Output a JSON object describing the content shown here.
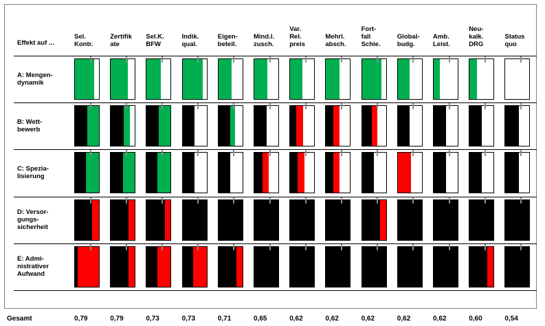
{
  "header_label": "Effekt auf ...",
  "columns": [
    {
      "label": "Sel.\nKontr.",
      "total": "0,79"
    },
    {
      "label": "Zertifik\nate",
      "total": "0,79"
    },
    {
      "label": "Sel.K.\nBFW",
      "total": "0,73"
    },
    {
      "label": "Indik.\nqual.",
      "total": "0,73"
    },
    {
      "label": "Eigen-\nbeteil.",
      "total": "0,71"
    },
    {
      "label": "Mind.l.\nzusch.",
      "total": "0,65"
    },
    {
      "label": "Var.\nRel.\npreis",
      "total": "0,62"
    },
    {
      "label": "Mehrl.\nabsch.",
      "total": "0,62"
    },
    {
      "label": "Fort-\nfall\nSchie.",
      "total": "0,62"
    },
    {
      "label": "Global-\nbudg.",
      "total": "0,62"
    },
    {
      "label": "Amb.\nLeist.",
      "total": "0,62"
    },
    {
      "label": "Neu-\nkalk.\nDRG",
      "total": "0,60"
    },
    {
      "label": "Status\nquo",
      "total": "0,54"
    }
  ],
  "rows": [
    {
      "label": "A: Mengen-\ndynamik",
      "cells": [
        {
          "black": 0.0,
          "color": "green",
          "level": 0.8
        },
        {
          "black": 0.0,
          "color": "green",
          "level": 0.7
        },
        {
          "black": 0.0,
          "color": "green",
          "level": 0.6
        },
        {
          "black": 0.0,
          "color": "green",
          "level": 0.85
        },
        {
          "black": 0.0,
          "color": "green",
          "level": 0.55
        },
        {
          "black": 0.0,
          "color": "green",
          "level": 0.55
        },
        {
          "black": 0.0,
          "color": "green",
          "level": 0.5
        },
        {
          "black": 0.0,
          "color": "green",
          "level": 0.55
        },
        {
          "black": 0.0,
          "color": "green",
          "level": 0.8
        },
        {
          "black": 0.0,
          "color": "green",
          "level": 0.5
        },
        {
          "black": 0.0,
          "color": "green",
          "level": 0.25
        },
        {
          "black": 0.0,
          "color": "green",
          "level": 0.3
        },
        {
          "black": 0.0,
          "color": "green",
          "level": 0.0
        }
      ]
    },
    {
      "label": "B: Wett-\nbewerb",
      "cells": [
        {
          "black": 0.5,
          "color": "green",
          "level": 0.5
        },
        {
          "black": 0.55,
          "color": "green",
          "level": 0.25
        },
        {
          "black": 0.5,
          "color": "green",
          "level": 0.5
        },
        {
          "black": 0.5,
          "color": "green",
          "level": 0.0
        },
        {
          "black": 0.5,
          "color": "green",
          "level": 0.2
        },
        {
          "black": 0.5,
          "color": "green",
          "level": 0.0
        },
        {
          "black": 0.25,
          "color": "red",
          "level": 0.3
        },
        {
          "black": 0.3,
          "color": "red",
          "level": 0.25
        },
        {
          "black": 0.4,
          "color": "red",
          "level": 0.25
        },
        {
          "black": 0.5,
          "color": "green",
          "level": 0.0
        },
        {
          "black": 0.5,
          "color": "green",
          "level": 0.0
        },
        {
          "black": 0.5,
          "color": "green",
          "level": 0.0
        },
        {
          "black": 0.55,
          "color": "green",
          "level": 0.0
        }
      ]
    },
    {
      "label": "C: Spezia-\nlisierung",
      "cells": [
        {
          "black": 0.45,
          "color": "green",
          "level": 0.55
        },
        {
          "black": 0.5,
          "color": "green",
          "level": 0.5
        },
        {
          "black": 0.45,
          "color": "green",
          "level": 0.55
        },
        {
          "black": 0.5,
          "color": "green",
          "level": 0.0
        },
        {
          "black": 0.5,
          "color": "green",
          "level": 0.0
        },
        {
          "black": 0.35,
          "color": "red",
          "level": 0.25
        },
        {
          "black": 0.3,
          "color": "red",
          "level": 0.3
        },
        {
          "black": 0.3,
          "color": "red",
          "level": 0.25
        },
        {
          "black": 0.5,
          "color": "green",
          "level": 0.0
        },
        {
          "black": 0.0,
          "color": "red",
          "level": 0.55
        },
        {
          "black": 0.5,
          "color": "green",
          "level": 0.0
        },
        {
          "black": 0.5,
          "color": "green",
          "level": 0.0
        },
        {
          "black": 0.55,
          "color": "green",
          "level": 0.0
        }
      ]
    },
    {
      "label": "D: Versor-\ngungs-\nsicherheit",
      "cells": [
        {
          "black": 0.7,
          "color": "red",
          "level": 0.3
        },
        {
          "black": 0.75,
          "color": "red",
          "level": 0.25
        },
        {
          "black": 0.75,
          "color": "red",
          "level": 0.25
        },
        {
          "black": 1.0,
          "color": "red",
          "level": 0.0
        },
        {
          "black": 1.0,
          "color": "red",
          "level": 0.0
        },
        {
          "black": 1.0,
          "color": "red",
          "level": 0.0
        },
        {
          "black": 1.0,
          "color": "red",
          "level": 0.0
        },
        {
          "black": 1.0,
          "color": "red",
          "level": 0.0
        },
        {
          "black": 0.75,
          "color": "red",
          "level": 0.25
        },
        {
          "black": 1.0,
          "color": "red",
          "level": 0.0
        },
        {
          "black": 1.0,
          "color": "red",
          "level": 0.0
        },
        {
          "black": 1.0,
          "color": "red",
          "level": 0.0
        },
        {
          "black": 1.0,
          "color": "red",
          "level": 0.0
        }
      ]
    },
    {
      "label": "E: Admi-\nnistrativer\nAufwand",
      "cells": [
        {
          "black": 0.1,
          "color": "red",
          "level": 0.9
        },
        {
          "black": 0.75,
          "color": "red",
          "level": 0.25
        },
        {
          "black": 0.45,
          "color": "red",
          "level": 0.55
        },
        {
          "black": 0.45,
          "color": "red",
          "level": 0.55
        },
        {
          "black": 0.75,
          "color": "red",
          "level": 0.25
        },
        {
          "black": 1.0,
          "color": "red",
          "level": 0.0
        },
        {
          "black": 1.0,
          "color": "red",
          "level": 0.0
        },
        {
          "black": 1.0,
          "color": "red",
          "level": 0.0
        },
        {
          "black": 1.0,
          "color": "red",
          "level": 0.0
        },
        {
          "black": 1.0,
          "color": "red",
          "level": 0.0
        },
        {
          "black": 1.0,
          "color": "red",
          "level": 0.0
        },
        {
          "black": 0.75,
          "color": "red",
          "level": 0.25
        },
        {
          "black": 1.0,
          "color": "red",
          "level": 0.0
        }
      ]
    }
  ],
  "footer_label": "Gesamt",
  "colors": {
    "green": "#00b050",
    "red": "#ff0000",
    "black": "#000000",
    "tick": "#8c8c8c"
  }
}
